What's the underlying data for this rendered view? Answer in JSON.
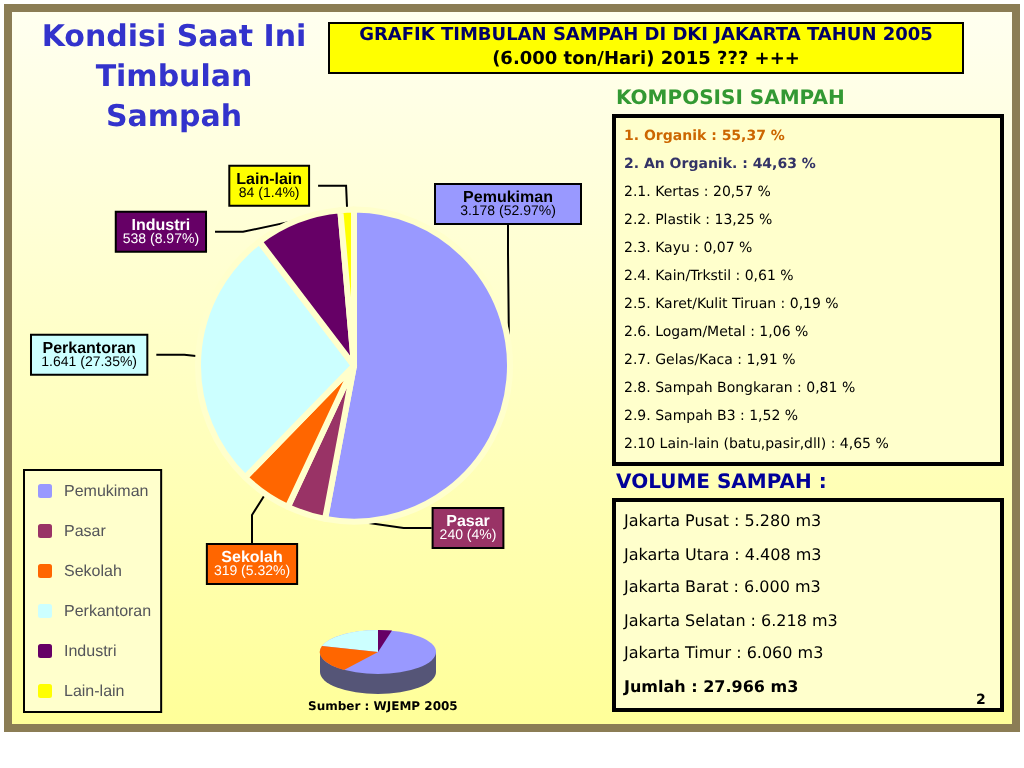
{
  "chart_data": {
    "type": "pie",
    "title": "GRAFIK TIMBULAN SAMPAH DI DKI JAKARTA TAHUN 2005",
    "subtitle": "(6.000 ton/Hari) 2015 ??? +++",
    "categories": [
      "Pemukiman",
      "Pasar",
      "Sekolah",
      "Perkantoran",
      "Industri",
      "Lain-lain"
    ],
    "values": [
      3178,
      240,
      319,
      1641,
      538,
      84
    ],
    "value_labels": [
      "3.178 (52.97%)",
      "240 (4%)",
      "319 (5.32%)",
      "1.641 (27.35%)",
      "538 (8.97%)",
      "84 (1.4%)"
    ],
    "colors": [
      "#9999ff",
      "#993366",
      "#ff6600",
      "#ccffff",
      "#660066",
      "#ffff00"
    ],
    "legend": "bottom left",
    "annotations": [
      "Kondisi Saat Ini Timbulan Sampah",
      "KOMPOSISI SAMPAH",
      "1. Organik : 55,37 %",
      "2. An Organik. : 44,63 %",
      "2.1. Kertas : 20,57 %",
      "2.2. Plastik : 13,25 %",
      "2.3. Kayu : 0,07 %",
      "2.4. Kain/Trkstil : 0,61 %",
      "2.5. Karet/Kulit Tiruan : 0,19 %",
      "2.6. Logam/Metal : 1,06 %",
      "2.7. Gelas/Kaca : 1,91 %",
      "2.8. Sampah Bongkaran : 0,81 %",
      "2.9. Sampah B3 : 1,52 %",
      "2.10 Lain-lain (batu,pasir,dll) : 4,65 %",
      "VOLUME SAMPAH :",
      "Jakarta Pusat : 5.280 m3",
      "Jakarta Utara : 4.408 m3",
      "Jakarta Barat : 6.000 m3",
      "Jakarta Selatan : 6.218 m3",
      "Jakarta Timur : 6.060 m3",
      "Jumlah : 27.966 m3",
      "Sumber : WJEMP 2005",
      "2"
    ]
  }
}
